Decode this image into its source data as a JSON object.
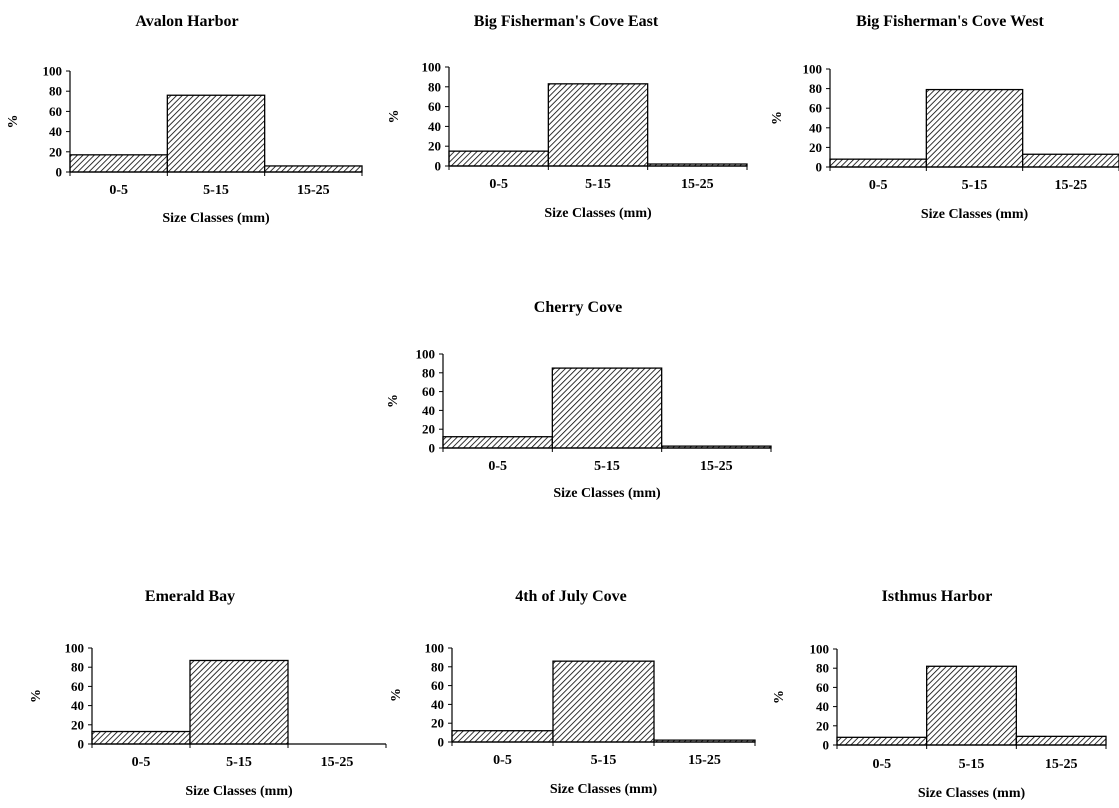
{
  "chart_data": [
    {
      "type": "bar",
      "title": "Avalon Harbor",
      "categories": [
        "0-5",
        "5-15",
        "15-25"
      ],
      "values": [
        17,
        76,
        6
      ],
      "xlabel": "Size Classes (mm)",
      "ylabel": "%",
      "yticks": [
        0,
        20,
        40,
        60,
        80,
        100
      ],
      "ylim": [
        0,
        100
      ],
      "grid": false,
      "fill": "diagonal-hatch"
    },
    {
      "type": "bar",
      "title": "Big Fisherman's Cove East",
      "categories": [
        "0-5",
        "5-15",
        "15-25"
      ],
      "values": [
        15,
        83,
        2
      ],
      "xlabel": "Size Classes (mm)",
      "ylabel": "%",
      "yticks": [
        0,
        20,
        40,
        60,
        80,
        100
      ],
      "ylim": [
        0,
        100
      ],
      "grid": false,
      "fill": "diagonal-hatch"
    },
    {
      "type": "bar",
      "title": "Big Fisherman's Cove West",
      "categories": [
        "0-5",
        "5-15",
        "15-25"
      ],
      "values": [
        8,
        79,
        13
      ],
      "xlabel": "Size Classes (mm)",
      "ylabel": "%",
      "yticks": [
        0,
        20,
        40,
        60,
        80,
        100
      ],
      "ylim": [
        0,
        100
      ],
      "grid": false,
      "fill": "diagonal-hatch"
    },
    {
      "type": "bar",
      "title": "Cherry Cove",
      "categories": [
        "0-5",
        "5-15",
        "15-25"
      ],
      "values": [
        12,
        85,
        2
      ],
      "xlabel": "Size Classes (mm)",
      "ylabel": "%",
      "yticks": [
        0,
        20,
        40,
        60,
        80,
        100
      ],
      "ylim": [
        0,
        100
      ],
      "grid": false,
      "fill": "diagonal-hatch"
    },
    {
      "type": "bar",
      "title": "Emerald Bay",
      "categories": [
        "0-5",
        "5-15",
        "15-25"
      ],
      "values": [
        13,
        87,
        0
      ],
      "xlabel": "Size Classes (mm)",
      "ylabel": "%",
      "yticks": [
        0,
        20,
        40,
        60,
        80,
        100
      ],
      "ylim": [
        0,
        100
      ],
      "grid": false,
      "fill": "diagonal-hatch"
    },
    {
      "type": "bar",
      "title": "4th of July Cove",
      "categories": [
        "0-5",
        "5-15",
        "15-25"
      ],
      "values": [
        12,
        86,
        2
      ],
      "xlabel": "Size Classes (mm)",
      "ylabel": "%",
      "yticks": [
        0,
        20,
        40,
        60,
        80,
        100
      ],
      "ylim": [
        0,
        100
      ],
      "grid": false,
      "fill": "diagonal-hatch"
    },
    {
      "type": "bar",
      "title": "Isthmus Harbor",
      "categories": [
        "0-5",
        "5-15",
        "15-25"
      ],
      "values": [
        8,
        82,
        9
      ],
      "xlabel": "Size Classes (mm)",
      "ylabel": "%",
      "yticks": [
        0,
        20,
        40,
        60,
        80,
        100
      ],
      "ylim": [
        0,
        100
      ],
      "grid": false,
      "fill": "diagonal-hatch"
    }
  ]
}
